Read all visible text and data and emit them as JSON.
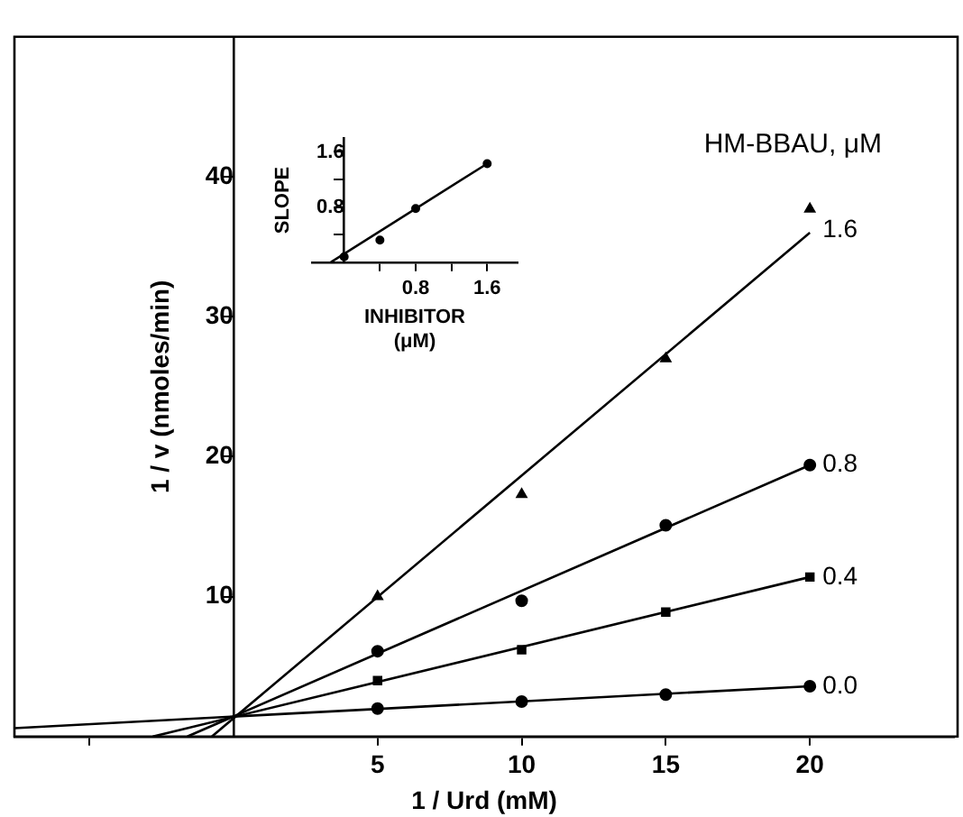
{
  "chart_data": [
    {
      "type": "scatter",
      "xlabel": "1 / Urd (mM)",
      "ylabel": "1 / v (nmoles/min)",
      "legend_title": "HM-BBAU, μM",
      "legend": false,
      "grid": false,
      "xlim": [
        -7.6,
        25
      ],
      "xticks": [
        {
          "value": -5,
          "label": null
        },
        5,
        10,
        15,
        20
      ],
      "ylim": [
        0,
        50
      ],
      "yticks": [
        10,
        20,
        30,
        40
      ],
      "series": [
        {
          "name": "1.6",
          "type": "scatter",
          "marker": "triangle",
          "color": "#000000",
          "x": [
            5,
            10,
            15,
            20
          ],
          "values": [
            10,
            17.3,
            27,
            37.7
          ]
        },
        {
          "name": "0.8",
          "type": "scatter",
          "marker": "circle",
          "color": "#000000",
          "x": [
            5,
            10,
            15,
            20
          ],
          "values": [
            6.1,
            9.7,
            15.1,
            19.4
          ]
        },
        {
          "name": "0.4",
          "type": "scatter",
          "marker": "square",
          "color": "#000000",
          "x": [
            5,
            10,
            15,
            20
          ],
          "values": [
            4,
            6.2,
            8.9,
            11.4
          ]
        },
        {
          "name": "0.0",
          "type": "scatter",
          "marker": "circle",
          "color": "#000000",
          "x": [
            5,
            10,
            15,
            20
          ],
          "values": [
            2,
            2.5,
            3,
            3.6
          ]
        },
        {
          "type": "line",
          "marker": "none",
          "color": "#000000",
          "x": [
            -0.75,
            20
          ],
          "values": [
            0,
            36
          ]
        },
        {
          "type": "line",
          "marker": "none",
          "color": "#000000",
          "x": [
            -1.6,
            20
          ],
          "values": [
            0,
            19.4
          ]
        },
        {
          "type": "line",
          "marker": "none",
          "color": "#000000",
          "x": [
            -2.8,
            20
          ],
          "values": [
            0,
            11.4
          ]
        },
        {
          "type": "line",
          "marker": "none",
          "color": "#000000",
          "x": [
            -7.6,
            20
          ],
          "values": [
            0.6,
            3.6
          ]
        }
      ]
    },
    {
      "type": "scatter",
      "xlabel": "INHIBITOR (μM)",
      "ylabel": "SLOPE",
      "legend": false,
      "grid": false,
      "xlim": [
        -0.36,
        1.94
      ],
      "xticks": [
        {
          "value": 0.4,
          "label": null
        },
        0.8,
        {
          "value": 1.2,
          "label": null
        },
        1.6
      ],
      "ylim": [
        0,
        1.8
      ],
      "yticks": [
        {
          "value": 0.4,
          "label": null
        },
        0.8,
        {
          "value": 1.2,
          "label": null
        },
        1.6
      ],
      "series": [
        {
          "type": "scatter",
          "marker": "circle",
          "color": "#000000",
          "x": [
            0,
            0.4,
            0.8,
            1.6
          ],
          "values": [
            0.08,
            0.32,
            0.78,
            1.43
          ]
        },
        {
          "type": "line",
          "marker": "none",
          "color": "#000000",
          "x": [
            -0.15,
            1.6
          ],
          "values": [
            0,
            1.43
          ]
        }
      ]
    }
  ]
}
